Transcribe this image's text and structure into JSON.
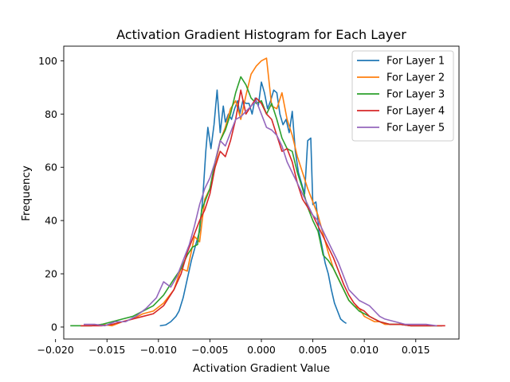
{
  "chart_data": {
    "type": "line",
    "title": "Activation Gradient Histogram for Each Layer",
    "xlabel": "Activation Gradient Value",
    "ylabel": "Frequency",
    "xlim": [
      -0.0192,
      0.0192
    ],
    "ylim": [
      -4.5,
      105.5
    ],
    "xticks": [
      -0.02,
      -0.015,
      -0.01,
      -0.005,
      0.0,
      0.005,
      0.01,
      0.015
    ],
    "xtick_labels": [
      "−0.020",
      "−0.015",
      "−0.010",
      "−0.005",
      "0.000",
      "0.005",
      "0.010",
      "0.015"
    ],
    "yticks": [
      0,
      20,
      40,
      60,
      80,
      100
    ],
    "ytick_labels": [
      "0",
      "20",
      "40",
      "60",
      "80",
      "100"
    ],
    "grid": false,
    "legend_position": "top-right",
    "series": [
      {
        "name": "For Layer 1",
        "color": "#1f77b4",
        "x": [
          -0.0098,
          -0.0093,
          -0.0088,
          -0.0083,
          -0.008,
          -0.0076,
          -0.0072,
          -0.0068,
          -0.0063,
          -0.006,
          -0.0057,
          -0.0054,
          -0.0052,
          -0.0049,
          -0.0046,
          -0.0043,
          -0.004,
          -0.0037,
          -0.0035,
          -0.0032,
          -0.0029,
          -0.0026,
          -0.0023,
          -0.0021,
          -0.0018,
          -0.0015,
          -0.0012,
          -0.0009,
          -0.0006,
          -0.0003,
          0.0,
          0.0003,
          0.0006,
          0.0009,
          0.0012,
          0.0015,
          0.0018,
          0.0021,
          0.0024,
          0.0027,
          0.003,
          0.0033,
          0.0036,
          0.0039,
          0.0042,
          0.0045,
          0.0048,
          0.005,
          0.0053,
          0.0056,
          0.0059,
          0.0062,
          0.0065,
          0.0068,
          0.0071,
          0.0074,
          0.0077,
          0.008,
          0.0082
        ],
        "y": [
          0.5,
          0.8,
          2,
          4,
          6,
          11,
          18,
          25,
          32,
          36,
          48,
          66,
          75,
          67,
          76,
          89,
          73,
          83,
          77,
          80,
          78,
          82,
          85,
          80,
          85,
          84,
          84,
          80,
          86,
          83,
          92,
          88,
          82,
          85,
          89,
          88,
          80,
          76,
          78,
          73,
          81,
          66,
          58,
          54,
          50,
          70,
          71,
          46,
          47,
          36,
          30,
          24,
          20,
          14,
          9,
          6,
          3,
          2,
          1.5
        ]
      },
      {
        "name": "For Layer 2",
        "color": "#ff7f0e",
        "x": [
          -0.0175,
          -0.0165,
          -0.0155,
          -0.0145,
          -0.0135,
          -0.0125,
          -0.0115,
          -0.0105,
          -0.0095,
          -0.0085,
          -0.0078,
          -0.0072,
          -0.0065,
          -0.006,
          -0.0055,
          -0.005,
          -0.0045,
          -0.004,
          -0.0035,
          -0.003,
          -0.0025,
          -0.002,
          -0.0015,
          -0.001,
          -0.0005,
          0.0,
          0.0005,
          0.001,
          0.0015,
          0.002,
          0.0025,
          0.003,
          0.0035,
          0.004,
          0.0045,
          0.005,
          0.0055,
          0.006,
          0.0065,
          0.007,
          0.0075,
          0.008,
          0.0085,
          0.009,
          0.0095,
          0.01,
          0.0105,
          0.011,
          0.0115,
          0.012,
          0.0125,
          0.0135,
          0.0145,
          0.0155,
          0.0165,
          0.0175
        ],
        "y": [
          0.5,
          0.5,
          1,
          0.5,
          2,
          3,
          5,
          6,
          9,
          14,
          22,
          21,
          34,
          32,
          48,
          52,
          60,
          70,
          75,
          82,
          85,
          78,
          87,
          95,
          98,
          100,
          101,
          83,
          82,
          88,
          78,
          72,
          64,
          58,
          52,
          47,
          42,
          35,
          28,
          22,
          18,
          14,
          10,
          8,
          7,
          4,
          3,
          2,
          2,
          1,
          1,
          1,
          0.5,
          0.5,
          0.5,
          0.5
        ]
      },
      {
        "name": "For Layer 3",
        "color": "#2ca02c",
        "x": [
          -0.0185,
          -0.0175,
          -0.0165,
          -0.0155,
          -0.0145,
          -0.0135,
          -0.0125,
          -0.0115,
          -0.0105,
          -0.0095,
          -0.0085,
          -0.0078,
          -0.0072,
          -0.0067,
          -0.0062,
          -0.0058,
          -0.0054,
          -0.005,
          -0.0045,
          -0.004,
          -0.0035,
          -0.003,
          -0.0025,
          -0.002,
          -0.0015,
          -0.001,
          -0.0005,
          0.0,
          0.0005,
          0.001,
          0.0015,
          0.002,
          0.0025,
          0.003,
          0.0035,
          0.004,
          0.0045,
          0.005,
          0.0055,
          0.006,
          0.0065,
          0.007,
          0.0075,
          0.008,
          0.0085,
          0.009,
          0.0095,
          0.01,
          0.0105,
          0.011,
          0.0115,
          0.0125,
          0.0135,
          0.0145,
          0.0155,
          0.0165,
          0.0175
        ],
        "y": [
          0.5,
          0.5,
          0.5,
          1,
          2,
          3,
          4,
          6,
          8,
          12,
          18,
          22,
          27,
          30,
          31,
          44,
          48,
          52,
          62,
          70,
          74,
          80,
          88,
          94,
          91,
          86,
          84,
          85,
          80,
          84,
          78,
          71,
          67,
          66,
          58,
          52,
          45,
          40,
          36,
          27,
          25,
          22,
          18,
          14,
          10,
          8,
          6,
          5,
          4,
          3,
          2,
          1,
          1,
          0.5,
          0.5,
          0.5,
          0.5
        ]
      },
      {
        "name": "For Layer 4",
        "color": "#d62728",
        "x": [
          -0.0175,
          -0.0165,
          -0.0155,
          -0.0145,
          -0.0135,
          -0.0125,
          -0.0115,
          -0.0105,
          -0.0095,
          -0.0085,
          -0.0078,
          -0.0072,
          -0.0066,
          -0.006,
          -0.0055,
          -0.005,
          -0.0045,
          -0.004,
          -0.0035,
          -0.003,
          -0.0025,
          -0.002,
          -0.0015,
          -0.001,
          -0.0005,
          0.0,
          0.0005,
          0.001,
          0.0015,
          0.002,
          0.0025,
          0.003,
          0.0035,
          0.004,
          0.0045,
          0.005,
          0.0055,
          0.006,
          0.0065,
          0.007,
          0.0075,
          0.008,
          0.0085,
          0.009,
          0.0095,
          0.01,
          0.0105,
          0.011,
          0.0115,
          0.0125,
          0.0135,
          0.0145,
          0.0155,
          0.0165,
          0.0178
        ],
        "y": [
          0.5,
          0.5,
          0.5,
          1,
          2,
          3,
          4,
          5,
          8,
          14,
          20,
          28,
          34,
          40,
          44,
          50,
          60,
          66,
          64,
          70,
          78,
          89,
          80,
          83,
          86,
          84,
          80,
          78,
          72,
          66,
          67,
          62,
          54,
          48,
          45,
          42,
          38,
          34,
          30,
          26,
          21,
          16,
          12,
          9,
          7,
          6,
          4,
          3,
          2,
          1,
          1,
          0.5,
          0.5,
          0.5,
          0.5
        ]
      },
      {
        "name": "For Layer 5",
        "color": "#9467bd",
        "x": [
          -0.0172,
          -0.0162,
          -0.0152,
          -0.0142,
          -0.0132,
          -0.0122,
          -0.0112,
          -0.0102,
          -0.0095,
          -0.0088,
          -0.0082,
          -0.0076,
          -0.007,
          -0.0065,
          -0.006,
          -0.0055,
          -0.005,
          -0.0045,
          -0.004,
          -0.0035,
          -0.003,
          -0.0025,
          -0.002,
          -0.0015,
          -0.001,
          -0.0005,
          0.0,
          0.0005,
          0.001,
          0.0015,
          0.002,
          0.0025,
          0.003,
          0.0035,
          0.004,
          0.0045,
          0.005,
          0.0055,
          0.006,
          0.0065,
          0.007,
          0.0075,
          0.008,
          0.0085,
          0.009,
          0.0095,
          0.01,
          0.0105,
          0.011,
          0.0115,
          0.012,
          0.013,
          0.014,
          0.015,
          0.016,
          0.017
        ],
        "y": [
          1,
          1,
          0.5,
          2,
          2,
          4,
          7,
          11,
          17,
          15,
          19,
          25,
          31,
          38,
          46,
          52,
          56,
          62,
          70,
          68,
          73,
          78,
          79,
          81,
          83,
          85,
          80,
          75,
          74,
          72,
          68,
          62,
          58,
          54,
          50,
          46,
          42,
          40,
          36,
          32,
          28,
          24,
          19,
          14,
          12,
          10,
          9,
          8,
          6,
          4,
          3,
          2,
          1,
          1,
          1,
          0.5
        ]
      }
    ]
  }
}
